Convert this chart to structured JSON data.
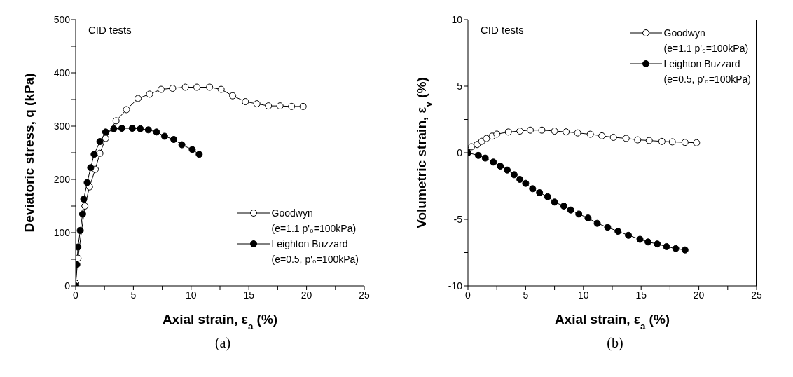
{
  "chart_data": [
    {
      "type": "line",
      "xlabel": "Axial strain, ε$_{a}$ (%)",
      "ylabel": "Deviatoric stress, q (kPa)",
      "annotations": [
        "CID tests",
        "(a)"
      ],
      "xlim": [
        0,
        25
      ],
      "xticks": [
        0,
        {
          "value": 2.5,
          "label": null
        },
        5,
        {
          "value": 7.5,
          "label": null
        },
        10,
        {
          "value": 12.5,
          "label": null
        },
        15,
        {
          "value": 17.5,
          "label": null
        },
        20,
        {
          "value": 22.5,
          "label": null
        },
        25
      ],
      "ylim": [
        0,
        500
      ],
      "yticks": [
        0,
        {
          "value": 50,
          "label": null
        },
        100,
        {
          "value": 150,
          "label": null
        },
        200,
        {
          "value": 250,
          "label": null
        },
        300,
        {
          "value": 350,
          "label": null
        },
        400,
        {
          "value": 450,
          "label": null
        },
        500
      ],
      "marker": "circle",
      "legend": "bottom right",
      "grid": false,
      "series": [
        {
          "name": "Goodwyn\n(e=1.1 p'₀=100kPa)",
          "color": "#ffffff",
          "x": [
            0,
            0.2,
            0.8,
            1.2,
            1.7,
            2.1,
            2.6,
            3.5,
            4.4,
            5.4,
            6.4,
            7.4,
            8.4,
            9.5,
            10.5,
            11.6,
            12.6,
            13.6,
            14.7,
            15.7,
            16.7,
            17.7,
            18.7,
            19.7
          ],
          "values": [
            5,
            52,
            150,
            186,
            219,
            249,
            277,
            310,
            331,
            352,
            360,
            369,
            371,
            373,
            373,
            373,
            369,
            357,
            346,
            342,
            338,
            338,
            337,
            337
          ]
        },
        {
          "name": "Leighton Buzzard\n(e=0.5, p'₀=100kPa)",
          "color": "#000000",
          "x": [
            0,
            0.1,
            0.2,
            0.4,
            0.6,
            0.7,
            1.0,
            1.3,
            1.6,
            2.1,
            2.6,
            3.3,
            4.0,
            4.9,
            5.6,
            6.3,
            7.0,
            7.7,
            8.5,
            9.2,
            10.1,
            10.7
          ],
          "values": [
            0,
            40,
            73,
            104,
            135,
            163,
            194,
            222,
            247,
            271,
            289,
            295,
            296,
            296,
            295,
            293,
            289,
            281,
            275,
            265,
            256,
            247
          ]
        }
      ]
    },
    {
      "type": "line",
      "xlabel": "Axial strain, ε$_{a}$ (%)",
      "ylabel": "Volumetric strain, ε$_{v}$ (%)",
      "annotations": [
        "CID tests",
        "(b)"
      ],
      "xlim": [
        0,
        25
      ],
      "xticks": [
        0,
        {
          "value": 2.5,
          "label": null
        },
        5,
        {
          "value": 7.5,
          "label": null
        },
        10,
        {
          "value": 12.5,
          "label": null
        },
        15,
        {
          "value": 17.5,
          "label": null
        },
        20,
        {
          "value": 22.5,
          "label": null
        },
        25
      ],
      "ylim": [
        -10,
        10
      ],
      "yticks": [
        -10,
        {
          "value": -7.5,
          "label": null
        },
        -5,
        {
          "value": -2.5,
          "label": null
        },
        0,
        {
          "value": 2.5,
          "label": null
        },
        5,
        {
          "value": 7.5,
          "label": null
        },
        10
      ],
      "marker": "circle",
      "legend": "top right",
      "grid": false,
      "series": [
        {
          "name": "Goodwyn\n(e=1.1 p'₀=100kPa)",
          "color": "#ffffff",
          "x": [
            0,
            0.3,
            0.8,
            1.2,
            1.6,
            2.1,
            2.5,
            3.5,
            4.5,
            5.4,
            6.4,
            7.5,
            8.5,
            9.5,
            10.6,
            11.6,
            12.6,
            13.7,
            14.7,
            15.7,
            16.8,
            17.7,
            18.8,
            19.8
          ],
          "values": [
            0,
            0.45,
            0.62,
            0.86,
            1.07,
            1.25,
            1.4,
            1.56,
            1.63,
            1.7,
            1.7,
            1.63,
            1.57,
            1.49,
            1.39,
            1.27,
            1.16,
            1.08,
            0.97,
            0.92,
            0.85,
            0.82,
            0.78,
            0.75
          ]
        },
        {
          "name": "Leighton Buzzard\n(e=0.5, p'₀=100kPa)",
          "color": "#000000",
          "x": [
            0,
            0.9,
            1.5,
            2.2,
            2.8,
            3.4,
            4.0,
            4.5,
            5.0,
            5.6,
            6.2,
            6.9,
            7.5,
            8.3,
            8.9,
            9.6,
            10.4,
            11.2,
            12.1,
            13.0,
            13.9,
            14.9,
            15.6,
            16.4,
            17.2,
            18.0,
            18.8
          ],
          "values": [
            0,
            -0.2,
            -0.4,
            -0.7,
            -1.0,
            -1.3,
            -1.65,
            -2.0,
            -2.3,
            -2.7,
            -3.0,
            -3.3,
            -3.7,
            -4.0,
            -4.3,
            -4.6,
            -4.9,
            -5.3,
            -5.6,
            -5.9,
            -6.2,
            -6.5,
            -6.7,
            -6.85,
            -7.05,
            -7.2,
            -7.3
          ]
        }
      ]
    }
  ]
}
